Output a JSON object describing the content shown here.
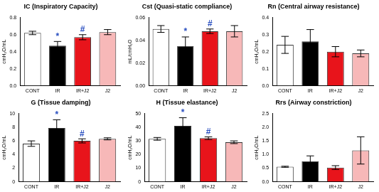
{
  "chart_data": [
    {
      "type": "bar",
      "title": "IC (Inspiratory Capacity)",
      "y_label": "cmH₂O/mL",
      "categories": [
        "CONT",
        "IR",
        "IR+J2",
        "J2"
      ],
      "values": [
        0.62,
        0.47,
        0.57,
        0.63
      ],
      "errors": [
        0.02,
        0.05,
        0.03,
        0.03
      ],
      "colors": [
        "#ffffff",
        "#000000",
        "#e8141b",
        "#f7b8b8"
      ],
      "ylim": [
        0,
        0.8
      ],
      "yticks": [
        {
          "value": 0,
          "label": "0.0"
        },
        0.2,
        0.4,
        0.6,
        0.8
      ],
      "grid": false,
      "annotations": [
        {
          "category": "IR",
          "text": "*"
        },
        {
          "category": "IR+J2",
          "text": "#"
        }
      ]
    },
    {
      "type": "bar",
      "title": "Cst (Quasi-static compliance)",
      "y_label": "mL/cmH₂O",
      "categories": [
        "CONT",
        "IR",
        "IR+J2",
        "J2"
      ],
      "values": [
        0.05,
        0.035,
        0.048,
        0.048
      ],
      "errors": [
        0.003,
        0.008,
        0.002,
        0.005
      ],
      "colors": [
        "#ffffff",
        "#000000",
        "#e8141b",
        "#f7b8b8"
      ],
      "ylim": [
        0,
        0.06
      ],
      "yticks": [
        {
          "value": 0,
          "label": "0.00"
        },
        {
          "value": 0.02,
          "label": "0.02"
        },
        {
          "value": 0.04,
          "label": "0.04"
        },
        {
          "value": 0.06,
          "label": "0.06"
        }
      ],
      "grid": false,
      "annotations": [
        {
          "category": "IR",
          "text": "*"
        },
        {
          "category": "IR+J2",
          "text": "#"
        }
      ]
    },
    {
      "type": "bar",
      "title": "Rn (Central airway resistance)",
      "y_label": "cmH₂O/mL",
      "categories": [
        "CONT",
        "IR",
        "IR+J2",
        "J2"
      ],
      "values": [
        0.24,
        0.26,
        0.2,
        0.19
      ],
      "errors": [
        0.05,
        0.07,
        0.03,
        0.02
      ],
      "colors": [
        "#ffffff",
        "#000000",
        "#e8141b",
        "#f7b8b8"
      ],
      "ylim": [
        0,
        0.4
      ],
      "yticks": [
        {
          "value": 0,
          "label": "0.0"
        },
        0.1,
        0.2,
        0.3,
        0.4
      ],
      "grid": false,
      "annotations": []
    },
    {
      "type": "bar",
      "title": "G (Tissue damping)",
      "y_label": "cmH₂O/mL",
      "categories": [
        "CONT",
        "IR",
        "IR+J2",
        "J2"
      ],
      "values": [
        5.6,
        7.9,
        6.0,
        6.3
      ],
      "errors": [
        0.4,
        1.2,
        0.3,
        0.15
      ],
      "colors": [
        "#ffffff",
        "#000000",
        "#e8141b",
        "#f7b8b8"
      ],
      "ylim": [
        0,
        10
      ],
      "yticks": [
        0,
        2,
        4,
        6,
        8,
        10
      ],
      "grid": false,
      "annotations": [
        {
          "category": "IR",
          "text": "*"
        },
        {
          "category": "IR+J2",
          "text": "#"
        }
      ]
    },
    {
      "type": "bar",
      "title": "H (Tissue elastance)",
      "y_label": "cmH₂O/mL",
      "categories": [
        "CONT",
        "IR",
        "IR+J2",
        "J2"
      ],
      "values": [
        31.5,
        41,
        32,
        29
      ],
      "errors": [
        1,
        6,
        1,
        1
      ],
      "colors": [
        "#ffffff",
        "#000000",
        "#e8141b",
        "#f7b8b8"
      ],
      "ylim": [
        0,
        50
      ],
      "yticks": [
        0,
        10,
        20,
        30,
        40,
        50
      ],
      "grid": false,
      "annotations": [
        {
          "category": "IR",
          "text": "*"
        },
        {
          "category": "IR+J2",
          "text": "#"
        }
      ]
    },
    {
      "type": "bar",
      "title": "Rrs (Airway constriction)",
      "y_label": "cmH₂O/mL",
      "categories": [
        "CONT",
        "IR",
        "IR+J2",
        "J2"
      ],
      "values": [
        0.55,
        0.75,
        0.52,
        1.15
      ],
      "errors": [
        0.02,
        0.2,
        0.07,
        0.5
      ],
      "colors": [
        "#ffffff",
        "#000000",
        "#e8141b",
        "#f7b8b8"
      ],
      "ylim": [
        0,
        2.5
      ],
      "yticks": [
        {
          "value": 0,
          "label": "0.0"
        },
        0.5,
        {
          "value": 1,
          "label": "1.0"
        },
        1.5,
        {
          "value": 2,
          "label": "2.0"
        },
        2.5
      ],
      "grid": false,
      "annotations": []
    }
  ]
}
